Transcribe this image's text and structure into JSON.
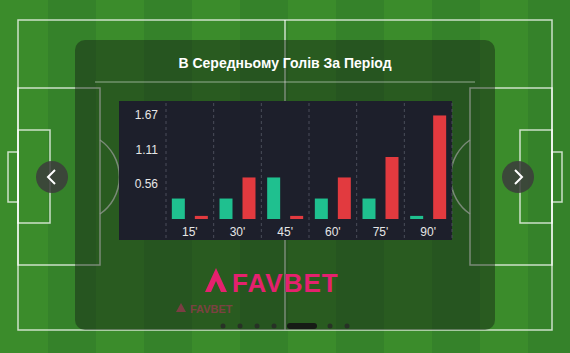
{
  "chart_data": {
    "type": "bar",
    "title": "В Середньому Голів За Період",
    "categories": [
      "15'",
      "30'",
      "45'",
      "60'",
      "75'",
      "90'"
    ],
    "series": [
      {
        "color": "#1fc08f",
        "values": [
          0.33,
          0.33,
          0.67,
          0.33,
          0.33,
          0.05
        ]
      },
      {
        "color": "#e23a3f",
        "values": [
          0.05,
          0.67,
          0.05,
          0.67,
          1.0,
          1.67
        ]
      }
    ],
    "ylim": [
      0,
      1.85
    ],
    "yticks": [
      0.56,
      1.11,
      1.67
    ],
    "grid": true
  },
  "logo": "FAVBET"
}
